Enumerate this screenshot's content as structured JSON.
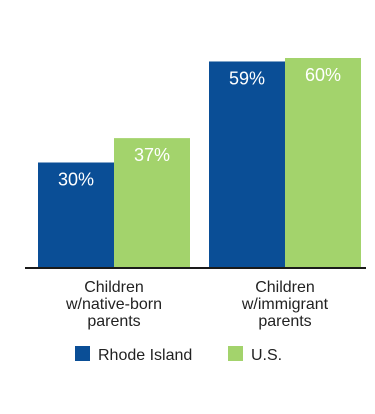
{
  "chart_data": {
    "type": "bar",
    "categories": [
      [
        "Children",
        "w/native-born",
        "parents"
      ],
      [
        "Children",
        "w/immigrant",
        "parents"
      ]
    ],
    "series": [
      {
        "name": "Rhode Island",
        "values": [
          30,
          59
        ],
        "labels": [
          "30%",
          "59%"
        ],
        "color": "#0a4e96",
        "label_color": "#ffffff"
      },
      {
        "name": "U.S.",
        "values": [
          37,
          60
        ],
        "labels": [
          "37%",
          "60%"
        ],
        "color": "#a3d36c",
        "label_color": "#ffffff"
      }
    ],
    "ylim": [
      0,
      70
    ],
    "grid": false,
    "legend": "bottom",
    "axis_color": "#1a1a1a",
    "text_color": "#222222"
  }
}
